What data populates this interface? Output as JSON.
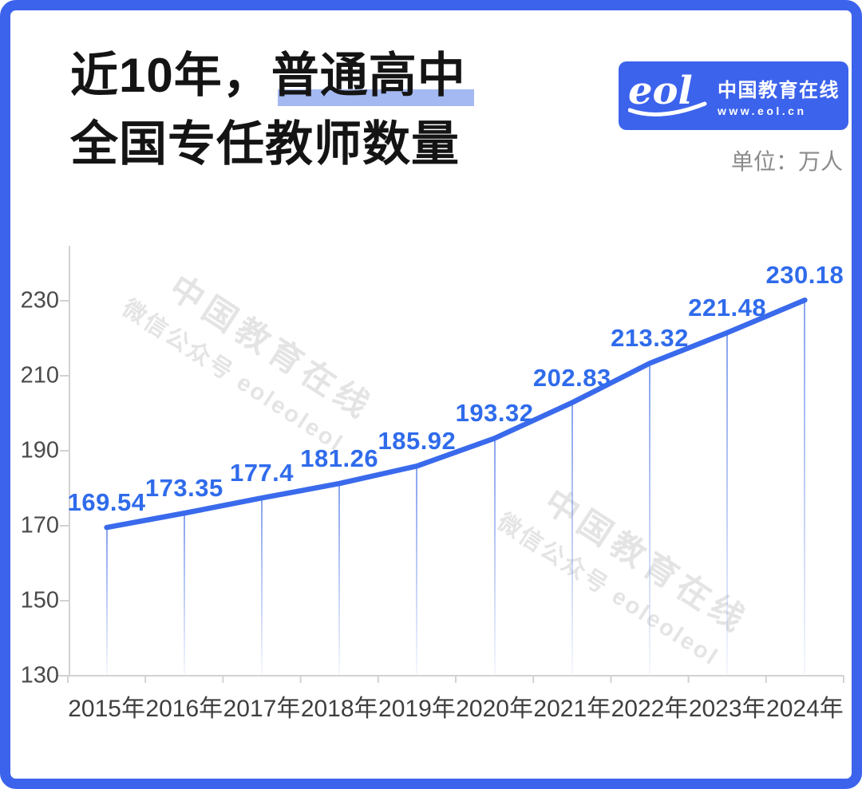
{
  "header": {
    "title_line1_pre": "近10年，",
    "title_line1_highlight": "普通高中",
    "title_line2": "全国专任教师数量",
    "unit_label": "单位：万人"
  },
  "logo": {
    "wordmark": "eol",
    "name": "中国教育在线",
    "url": "www.eol.cn"
  },
  "watermark": {
    "line1": "中国教育在线",
    "line2": "微信公众号 eoleoleol"
  },
  "colors": {
    "accent_blue": "#3C63EC",
    "line_blue": "#3A6AEC",
    "value_label_blue": "#2F6BEB",
    "highlight_blue": "#A4B9F1",
    "axis_text": "#4a4a4a",
    "axis_line": "#d2d2d2",
    "title_text": "#141414",
    "unit_text": "#8b8b8b"
  },
  "chart_data": {
    "type": "line",
    "title": "近10年，普通高中全国专任教师数量",
    "categories": [
      "2015年",
      "2016年",
      "2017年",
      "2018年",
      "2019年",
      "2020年",
      "2021年",
      "2022年",
      "2023年",
      "2024年"
    ],
    "values": [
      169.54,
      173.35,
      177.4,
      181.26,
      185.92,
      193.32,
      202.83,
      213.32,
      221.48,
      230.18
    ],
    "ylabel": "万人",
    "ylim": [
      130,
      240
    ],
    "yticks": [
      130,
      150,
      170,
      190,
      210,
      230
    ],
    "grid": false,
    "legend": "none",
    "data_labels": true
  }
}
